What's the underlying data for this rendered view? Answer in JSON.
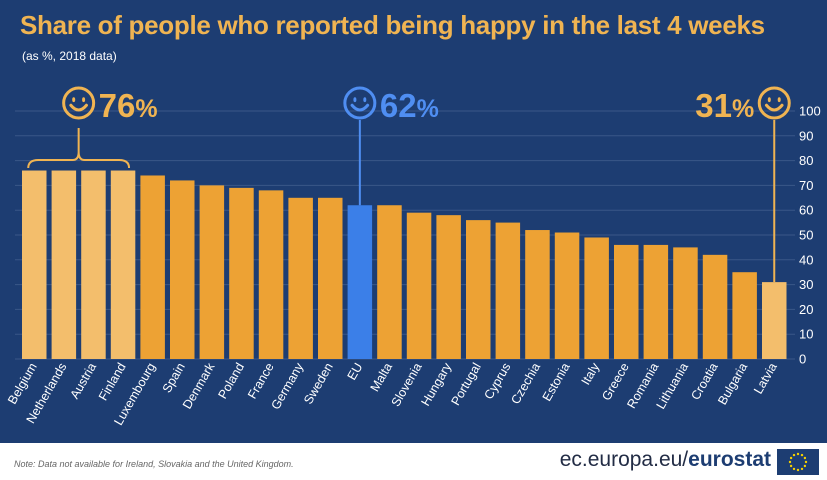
{
  "title": "Share of people who reported being happy in the last 4 weeks",
  "subtitle": "(as %, 2018 data)",
  "footer": {
    "note": "Note: Data not available for Ireland, Slovakia and the United Kingdom.",
    "brand_prefix": "ec.europa.eu/",
    "brand_name": "eurostat"
  },
  "colors": {
    "background": "#1d3d72",
    "bar": "#eda234",
    "bar_highlight": "#f3be6c",
    "bar_eu": "#3b7fe8",
    "callout_orange": "#f0b452",
    "callout_blue": "#4f8ef2",
    "grid": "#3a5788"
  },
  "callouts": [
    {
      "value": "76",
      "unit": "%",
      "icon": "smiley-icon"
    },
    {
      "value": "62",
      "unit": "%",
      "icon": "smiley-icon"
    },
    {
      "value": "31",
      "unit": "%",
      "icon": "smiley-icon"
    }
  ],
  "chart_data": {
    "type": "bar",
    "title": "Share of people who reported being happy in the last 4 weeks",
    "subtitle": "(as %, 2018 data)",
    "unit": "%",
    "categories": [
      "Belgium",
      "Netherlands",
      "Austria",
      "Finland",
      "Luxembourg",
      "Spain",
      "Denmark",
      "Poland",
      "France",
      "Germany",
      "Sweden",
      "EU",
      "Malta",
      "Slovenia",
      "Hungary",
      "Portugal",
      "Cyprus",
      "Czechia",
      "Estonia",
      "Italy",
      "Greece",
      "Romania",
      "Lithuania",
      "Croatia",
      "Bulgaria",
      "Latvia"
    ],
    "values": [
      76,
      76,
      76,
      76,
      74,
      72,
      70,
      69,
      68,
      65,
      65,
      62,
      62,
      59,
      58,
      56,
      55,
      52,
      51,
      49,
      46,
      46,
      45,
      42,
      35,
      31
    ],
    "highlighted": [
      "Belgium",
      "Netherlands",
      "Austria",
      "Finland",
      "Latvia"
    ],
    "eu": "EU",
    "ylim": [
      0,
      100
    ],
    "yticks": [
      0,
      10,
      20,
      30,
      40,
      50,
      60,
      70,
      80,
      90,
      100
    ],
    "y_axis_position": "right",
    "grid": true,
    "legend": "none"
  }
}
